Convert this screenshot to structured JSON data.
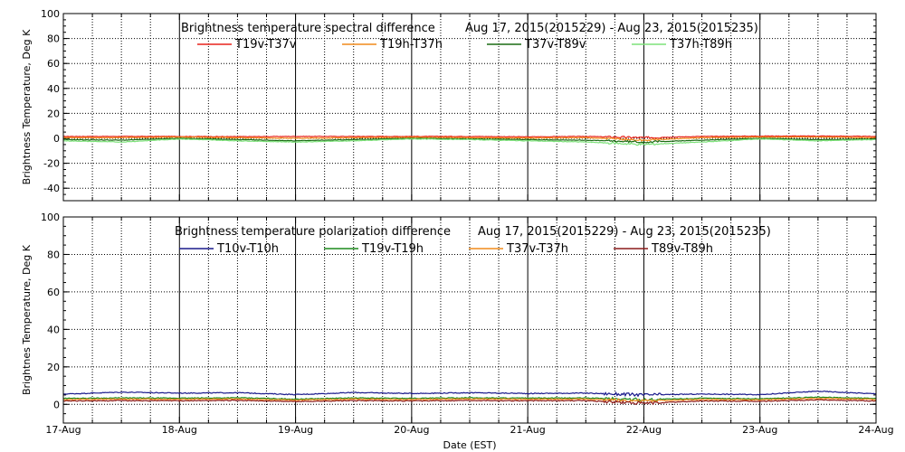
{
  "chart_data": [
    {
      "type": "line",
      "title": "Brightness temperature spectral difference",
      "date_range": "Aug 17, 2015(2015229) - Aug 23, 2015(2015235)",
      "ylabel": "Brightness Temperature, Deg K",
      "xlabel": "",
      "ylim": [
        -50,
        100
      ],
      "yticks": [
        -40,
        -20,
        0,
        20,
        40,
        60,
        80,
        100
      ],
      "xlim": [
        0,
        7
      ],
      "xticks": [
        "17-Aug",
        "18-Aug",
        "19-Aug",
        "20-Aug",
        "21-Aug",
        "22-Aug",
        "23-Aug",
        "24-Aug"
      ],
      "xtick_labels_shown": false,
      "grid": true,
      "legend_placement": "top",
      "series": [
        {
          "name": "T19v-T37v",
          "color": "#e8221b",
          "x": [
            0,
            0.5,
            1,
            1.5,
            2,
            2.5,
            3,
            3.5,
            4,
            4.5,
            5,
            5.5,
            6,
            6.5,
            7
          ],
          "values": [
            1.5,
            1.5,
            1.5,
            1.3,
            1.5,
            1.5,
            1.5,
            1.5,
            1.2,
            1.5,
            0.5,
            1.5,
            1.8,
            1.8,
            1.5
          ]
        },
        {
          "name": "T19h-T37h",
          "color": "#f08a1a",
          "x": [
            0,
            0.5,
            1,
            1.5,
            2,
            2.5,
            3,
            3.5,
            4,
            4.5,
            5,
            5.5,
            6,
            6.5,
            7
          ],
          "values": [
            0.5,
            0.5,
            1.0,
            0.5,
            0,
            0.5,
            0.8,
            0.5,
            0.2,
            0.5,
            -1.5,
            0.5,
            1.0,
            1.0,
            0.5
          ]
        },
        {
          "name": "T37v-T89v",
          "color": "#1a6b12",
          "x": [
            0,
            0.5,
            1,
            1.5,
            2,
            2.5,
            3,
            3.5,
            4,
            4.5,
            5,
            5.5,
            6,
            6.5,
            7
          ],
          "values": [
            -1,
            -1.5,
            0,
            -1,
            -2,
            -1,
            0,
            -0.5,
            -1,
            -1.5,
            -3,
            -1.5,
            0,
            -1,
            -0.5
          ]
        },
        {
          "name": "T37h-T89h",
          "color": "#7de27a",
          "x": [
            0,
            0.5,
            1,
            1.5,
            2,
            2.5,
            3,
            3.5,
            4,
            4.5,
            5,
            5.5,
            6,
            6.5,
            7
          ],
          "values": [
            -2,
            -3,
            -0.5,
            -2,
            -3,
            -2,
            -0.5,
            -1,
            -2,
            -3,
            -5,
            -3,
            -0.5,
            -2,
            -1
          ]
        }
      ]
    },
    {
      "type": "line",
      "title": "Brightness temperature polarization difference",
      "date_range": "Aug 17, 2015(2015229) - Aug 23, 2015(2015235)",
      "ylabel": "Brightnes Temperature, Deg K",
      "xlabel": "Date (EST)",
      "ylim": [
        -10,
        100
      ],
      "yticks": [
        0,
        20,
        40,
        60,
        80,
        100
      ],
      "xlim": [
        0,
        7
      ],
      "xticks": [
        "17-Aug",
        "18-Aug",
        "19-Aug",
        "20-Aug",
        "21-Aug",
        "22-Aug",
        "23-Aug",
        "24-Aug"
      ],
      "xtick_labels_shown": true,
      "grid": true,
      "legend_placement": "top",
      "series": [
        {
          "name": "T10v-T10h",
          "color": "#1a1a8c",
          "x": [
            0,
            0.5,
            1,
            1.5,
            2,
            2.5,
            3,
            3.5,
            4,
            4.5,
            5,
            5.5,
            6,
            6.5,
            7
          ],
          "values": [
            5.5,
            6.5,
            6.0,
            6.2,
            5.2,
            6.3,
            5.8,
            6.2,
            5.8,
            6.0,
            5.0,
            5.5,
            5.2,
            7.0,
            5.6
          ]
        },
        {
          "name": "T19v-T19h",
          "color": "#1c8a1c",
          "x": [
            0,
            0.5,
            1,
            1.5,
            2,
            2.5,
            3,
            3.5,
            4,
            4.5,
            5,
            5.5,
            6,
            6.5,
            7
          ],
          "values": [
            3.2,
            3.4,
            3.3,
            3.5,
            2.8,
            3.4,
            3.2,
            3.5,
            3.3,
            3.4,
            2.5,
            3.2,
            3.0,
            3.8,
            3.2
          ]
        },
        {
          "name": "T37v-T37h",
          "color": "#f08a1a",
          "x": [
            0,
            0.5,
            1,
            1.5,
            2,
            2.5,
            3,
            3.5,
            4,
            4.5,
            5,
            5.5,
            6,
            6.5,
            7
          ],
          "values": [
            2.6,
            2.8,
            2.7,
            2.9,
            2.3,
            2.8,
            2.6,
            2.9,
            2.7,
            2.8,
            1.8,
            2.6,
            2.4,
            3.2,
            2.6
          ]
        },
        {
          "name": "T89v-T89h",
          "color": "#8b1a1a",
          "x": [
            0,
            0.5,
            1,
            1.5,
            2,
            2.5,
            3,
            3.5,
            4,
            4.5,
            5,
            5.5,
            6,
            6.5,
            7
          ],
          "values": [
            1.8,
            2.0,
            1.9,
            2.1,
            1.5,
            2.0,
            1.8,
            2.1,
            1.9,
            2.0,
            0.5,
            1.8,
            1.6,
            2.4,
            1.8
          ]
        }
      ]
    }
  ]
}
